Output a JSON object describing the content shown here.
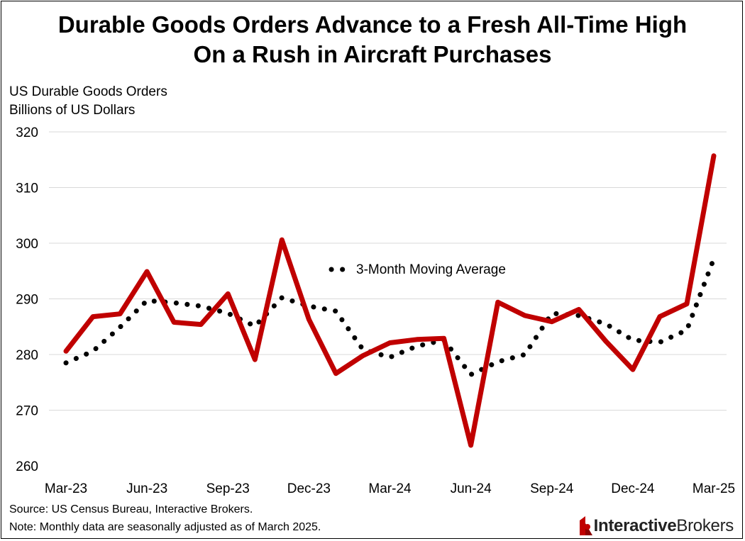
{
  "title_line1": "Durable Goods Orders Advance to a Fresh All-Time High",
  "title_line2": "On a Rush in Aircraft Purchases",
  "ylabel_line1": "US Durable Goods Orders",
  "ylabel_line2": "Billions of US Dollars",
  "source": "Source: US Census Bureau, Interactive Brokers.",
  "note": "Note: Monthly data are seasonally adjusted as of March 2025.",
  "logo": {
    "bold": "Interactive",
    "regular": "Brokers"
  },
  "colors": {
    "line": "#C00000",
    "moving_average": "#000000",
    "grid": "#d9d9d9"
  },
  "chart_data": {
    "type": "line",
    "x": [
      "Mar-23",
      "Apr-23",
      "May-23",
      "Jun-23",
      "Jul-23",
      "Aug-23",
      "Sep-23",
      "Oct-23",
      "Nov-23",
      "Dec-23",
      "Jan-24",
      "Feb-24",
      "Mar-24",
      "Apr-24",
      "May-24",
      "Jun-24",
      "Jul-24",
      "Aug-24",
      "Sep-24",
      "Oct-24",
      "Nov-24",
      "Dec-24",
      "Jan-25",
      "Feb-25",
      "Mar-25"
    ],
    "x_tick_labels": [
      "Mar-23",
      "Jun-23",
      "Sep-23",
      "Dec-23",
      "Mar-24",
      "Jun-24",
      "Sep-24",
      "Dec-24",
      "Mar-25"
    ],
    "series": [
      {
        "values": [
          280.6,
          286.8,
          287.3,
          294.9,
          285.8,
          285.4,
          290.9,
          279.1,
          300.6,
          286.3,
          276.6,
          279.8,
          282.1,
          282.7,
          282.9,
          263.7,
          289.4,
          287.0,
          285.9,
          288.1,
          282.4,
          277.3,
          286.8,
          289.1,
          315.7
        ]
      },
      {
        "name": "3-Month Moving Average",
        "style": "dotted",
        "values": [
          278.5,
          280.6,
          284.9,
          289.7,
          289.3,
          288.7,
          287.4,
          285.1,
          290.2,
          288.7,
          287.8,
          280.9,
          279.5,
          281.5,
          282.6,
          276.4,
          278.7,
          280.0,
          287.4,
          287.0,
          285.5,
          282.6,
          282.2,
          284.4,
          297.2
        ]
      }
    ],
    "ylim": [
      260,
      320
    ],
    "yticks": [
      260,
      270,
      280,
      290,
      300,
      310,
      320
    ],
    "grid": true,
    "legend": {
      "text": "3-Month Moving Average",
      "placement": "center"
    }
  }
}
